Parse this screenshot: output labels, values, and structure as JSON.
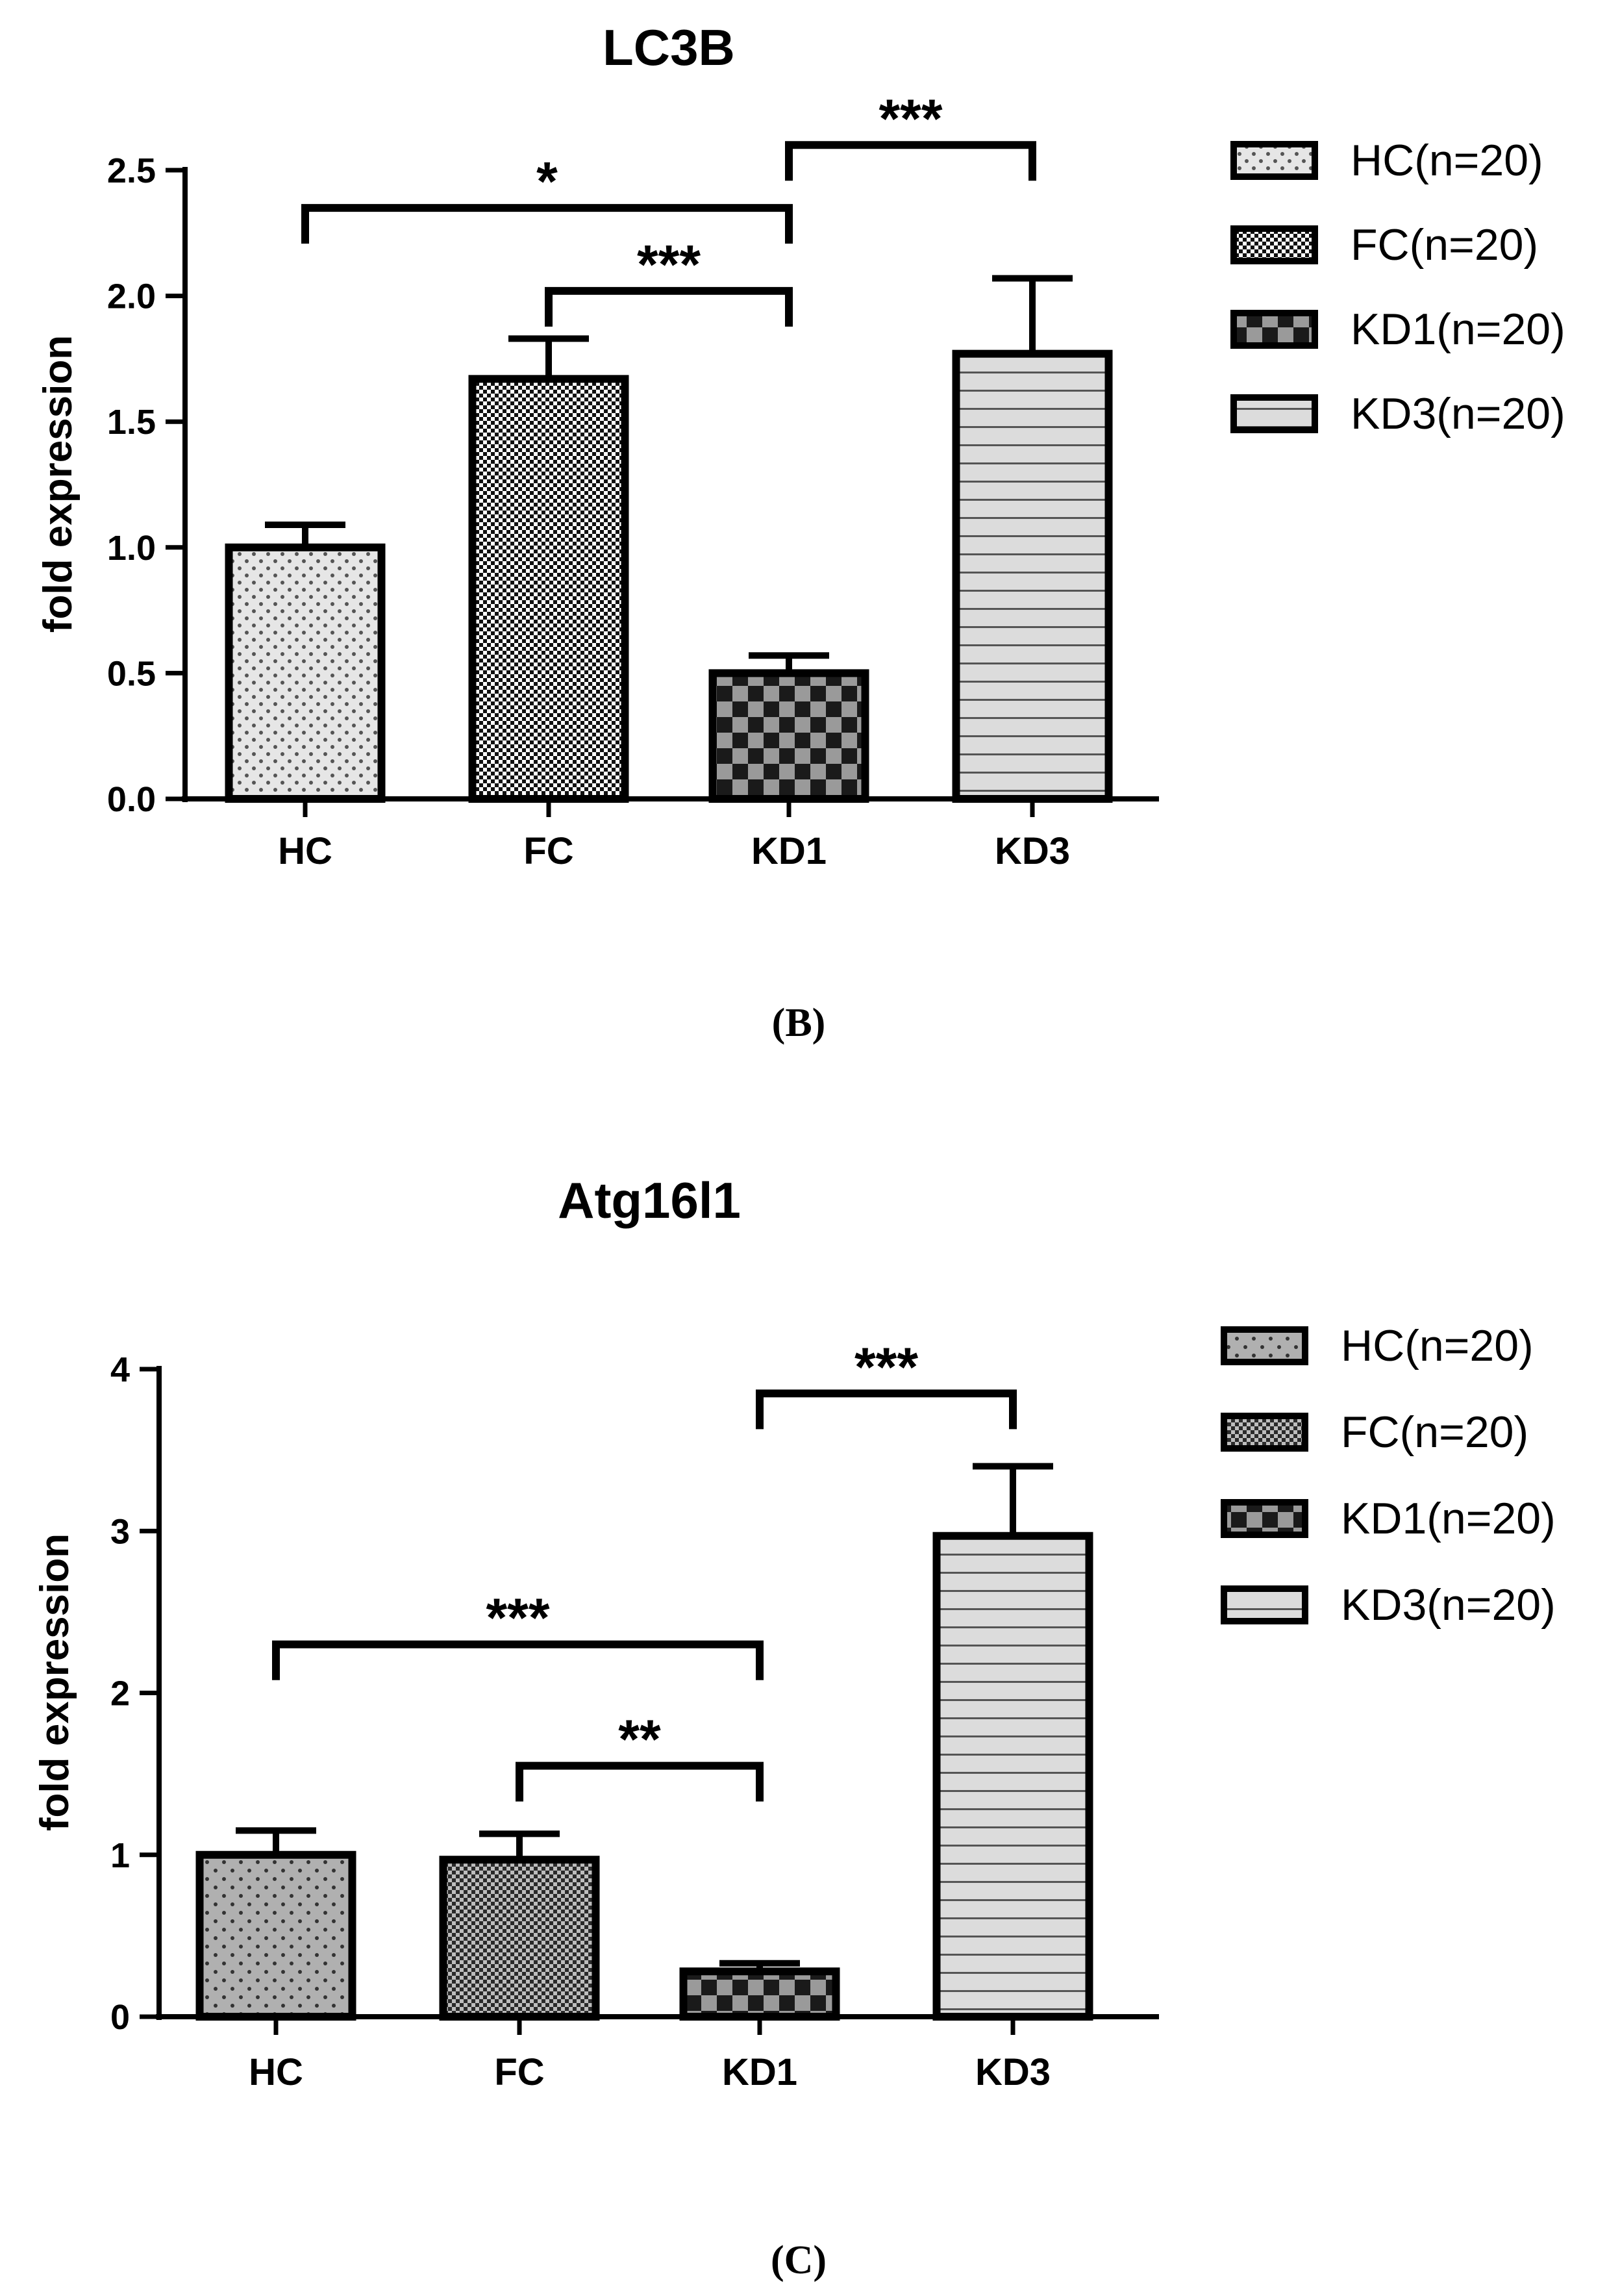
{
  "figure": {
    "panel_labels": [
      "(B)",
      "(C)"
    ]
  },
  "chart_data": [
    {
      "type": "bar",
      "title": "LC3B",
      "xlabel": "",
      "ylabel": "fold expression",
      "categories": [
        "HC",
        "FC",
        "KD1",
        "KD3"
      ],
      "values": [
        1.0,
        1.67,
        0.5,
        1.77
      ],
      "errors": [
        0.09,
        0.16,
        0.07,
        0.3
      ],
      "ylim": [
        0,
        2.5
      ],
      "yticks": [
        "0.0",
        "0.5",
        "1.0",
        "1.5",
        "2.0",
        "2.5"
      ],
      "legend": [
        "HC(n=20)",
        "FC(n=20)",
        "KD1(n=20)",
        "KD3(n=20)"
      ],
      "legend_position": "right",
      "significance": [
        {
          "from": "HC",
          "to": "KD1",
          "label": "*",
          "y": 2.35
        },
        {
          "from": "FC",
          "to": "KD1",
          "label": "***",
          "y": 2.02
        },
        {
          "from": "KD1",
          "to": "KD3",
          "label": "***",
          "y": 2.6
        }
      ],
      "patterns": [
        "dots",
        "fine-check",
        "check",
        "hlines"
      ]
    },
    {
      "type": "bar",
      "title": "Atg16l1",
      "xlabel": "",
      "ylabel": "fold expression",
      "categories": [
        "HC",
        "FC",
        "KD1",
        "KD3"
      ],
      "values": [
        1.0,
        0.97,
        0.28,
        2.97
      ],
      "errors": [
        0.15,
        0.16,
        0.05,
        0.43
      ],
      "ylim": [
        0,
        4
      ],
      "yticks": [
        "0",
        "1",
        "2",
        "3",
        "4"
      ],
      "legend": [
        "HC(n=20)",
        "FC(n=20)",
        "KD1(n=20)",
        "KD3(n=20)"
      ],
      "legend_position": "right",
      "significance": [
        {
          "from": "KD1",
          "to": "KD3",
          "label": "***",
          "y": 3.85
        },
        {
          "from": "HC",
          "to": "KD1",
          "label": "***",
          "y": 2.3
        },
        {
          "from": "FC",
          "to": "KD1",
          "label": "**",
          "y": 1.55
        }
      ],
      "patterns": [
        "dots",
        "fine-check",
        "check",
        "hlines"
      ],
      "colors": {
        "bar_fill": "#b7b7b7",
        "kd3_fill": "#dcdcdc"
      }
    }
  ]
}
